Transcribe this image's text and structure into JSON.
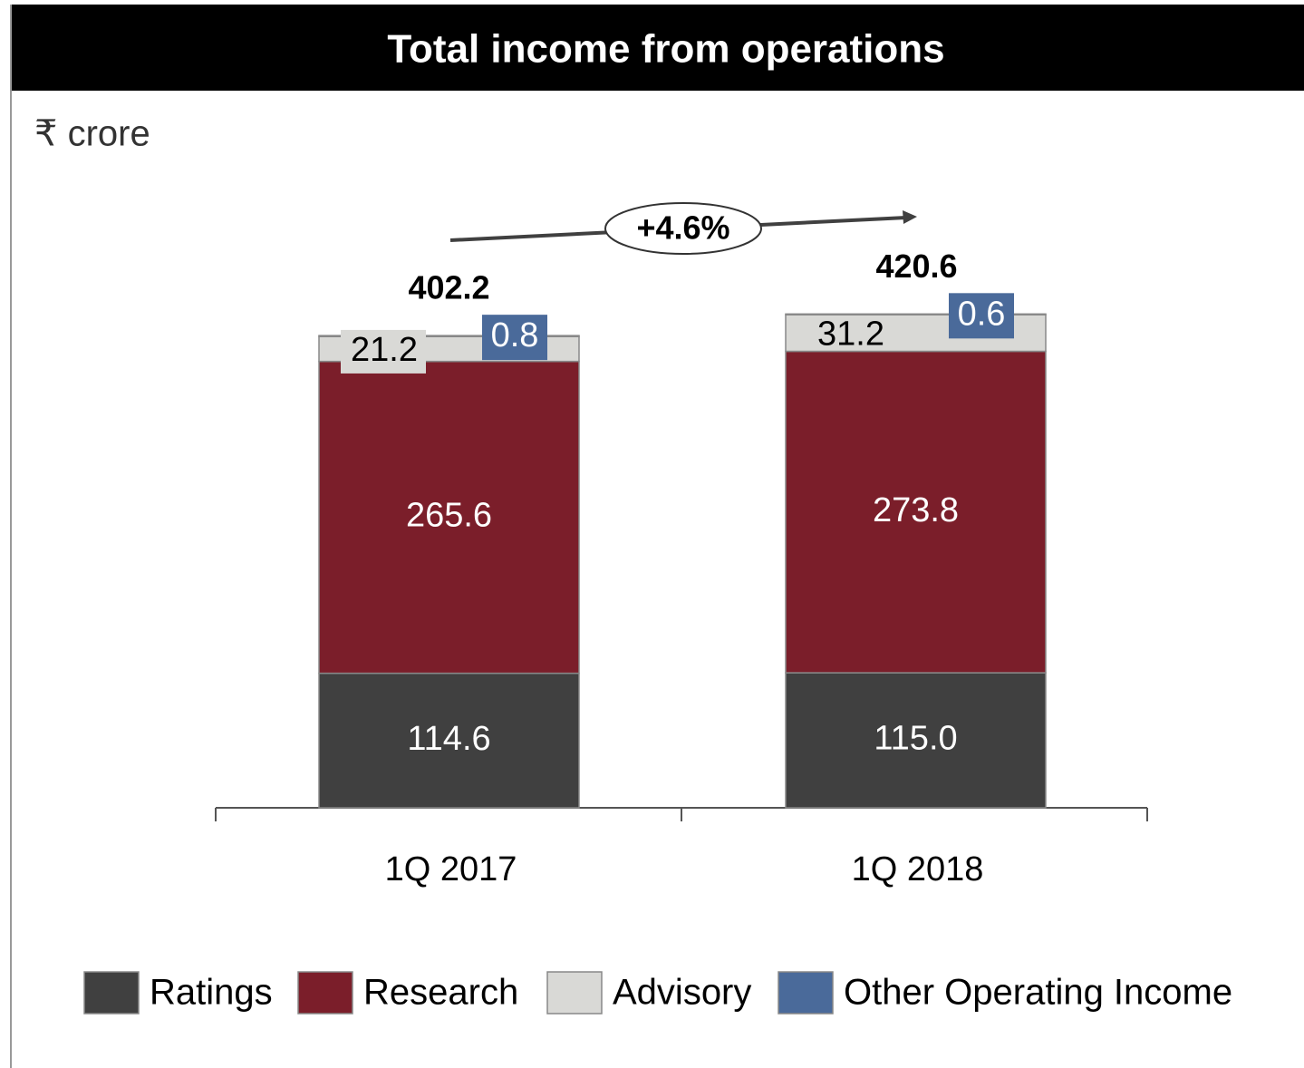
{
  "chart_data": {
    "type": "stacked_bar",
    "title": "Total income from operations",
    "unit_label": "₹ crore",
    "categories": [
      "1Q 2017",
      "1Q 2018"
    ],
    "series": [
      {
        "name": "Ratings",
        "color": "#404040",
        "values": [
          114.6,
          115.0
        ],
        "value_labels": [
          "114.6",
          "115.0"
        ]
      },
      {
        "name": "Research",
        "color": "#7b1e2a",
        "values": [
          265.6,
          273.8
        ]
      },
      {
        "name": "Advisory",
        "color": "#d9d9d6",
        "values": [
          21.2,
          31.2
        ]
      },
      {
        "name": "Other Operating Income",
        "color": "#4a6a9a",
        "values": [
          0.8,
          0.6
        ]
      }
    ],
    "totals": [
      402.2,
      420.6
    ],
    "growth_annotation": "+4.6%",
    "legend": "bottom"
  }
}
